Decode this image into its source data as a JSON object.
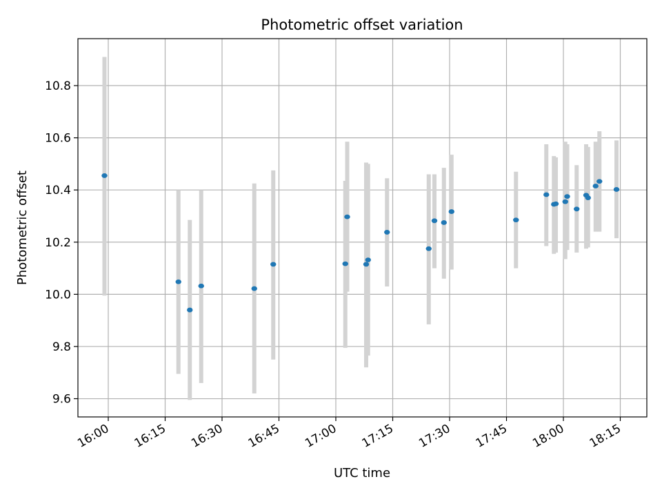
{
  "chart_data": {
    "type": "scatter",
    "title": "Photometric offset variation",
    "xlabel": "UTC time",
    "ylabel": "Photometric offset",
    "grid": true,
    "xlim": [
      "15:52",
      "18:22"
    ],
    "ylim": [
      9.53,
      10.98
    ],
    "x_ticks": [
      "16:00",
      "16:15",
      "16:30",
      "16:45",
      "17:00",
      "17:15",
      "17:30",
      "17:45",
      "18:00",
      "18:15"
    ],
    "y_ticks": [
      "9.6",
      "9.8",
      "10.0",
      "10.2",
      "10.4",
      "10.6",
      "10.8"
    ],
    "colors": {
      "point": "#1f77b4",
      "errorbar": "#d3d3d3",
      "grid": "#b0b0b0"
    },
    "points": [
      {
        "x": "15:59:00",
        "y": 10.455,
        "err": [
          9.995,
          10.91
        ]
      },
      {
        "x": "16:18:30",
        "y": 10.048,
        "err": [
          9.695,
          10.4
        ]
      },
      {
        "x": "16:21:30",
        "y": 9.94,
        "err": [
          9.595,
          10.285
        ]
      },
      {
        "x": "16:24:30",
        "y": 10.032,
        "err": [
          9.66,
          10.4
        ]
      },
      {
        "x": "16:38:30",
        "y": 10.022,
        "err": [
          9.62,
          10.425
        ]
      },
      {
        "x": "16:43:30",
        "y": 10.115,
        "err": [
          9.75,
          10.475
        ]
      },
      {
        "x": "17:02:30",
        "y": 10.117,
        "err": [
          9.795,
          10.435
        ]
      },
      {
        "x": "17:03:00",
        "y": 10.297,
        "err": [
          10.01,
          10.585
        ]
      },
      {
        "x": "17:08:00",
        "y": 10.115,
        "err": [
          9.72,
          10.505
        ]
      },
      {
        "x": "17:08:30",
        "y": 10.132,
        "err": [
          9.765,
          10.5
        ]
      },
      {
        "x": "17:13:30",
        "y": 10.238,
        "err": [
          10.03,
          10.445
        ]
      },
      {
        "x": "17:24:30",
        "y": 10.175,
        "err": [
          9.885,
          10.46
        ]
      },
      {
        "x": "17:26:00",
        "y": 10.282,
        "err": [
          10.1,
          10.46
        ]
      },
      {
        "x": "17:28:30",
        "y": 10.275,
        "err": [
          10.06,
          10.485
        ]
      },
      {
        "x": "17:30:30",
        "y": 10.317,
        "err": [
          10.095,
          10.535
        ]
      },
      {
        "x": "17:47:30",
        "y": 10.285,
        "err": [
          10.1,
          10.47
        ]
      },
      {
        "x": "17:55:30",
        "y": 10.382,
        "err": [
          10.185,
          10.575
        ]
      },
      {
        "x": "17:57:30",
        "y": 10.345,
        "err": [
          10.155,
          10.53
        ]
      },
      {
        "x": "17:58:00",
        "y": 10.347,
        "err": [
          10.16,
          10.525
        ]
      },
      {
        "x": "18:00:30",
        "y": 10.355,
        "err": [
          10.135,
          10.585
        ]
      },
      {
        "x": "18:01:00",
        "y": 10.375,
        "err": [
          10.17,
          10.575
        ]
      },
      {
        "x": "18:03:30",
        "y": 10.327,
        "err": [
          10.16,
          10.495
        ]
      },
      {
        "x": "18:06:00",
        "y": 10.38,
        "err": [
          10.175,
          10.575
        ]
      },
      {
        "x": "18:06:30",
        "y": 10.37,
        "err": [
          10.18,
          10.565
        ]
      },
      {
        "x": "18:08:30",
        "y": 10.415,
        "err": [
          10.24,
          10.585
        ]
      },
      {
        "x": "18:09:30",
        "y": 10.433,
        "err": [
          10.24,
          10.625
        ]
      },
      {
        "x": "18:14:00",
        "y": 10.402,
        "err": [
          10.215,
          10.59
        ]
      }
    ]
  }
}
